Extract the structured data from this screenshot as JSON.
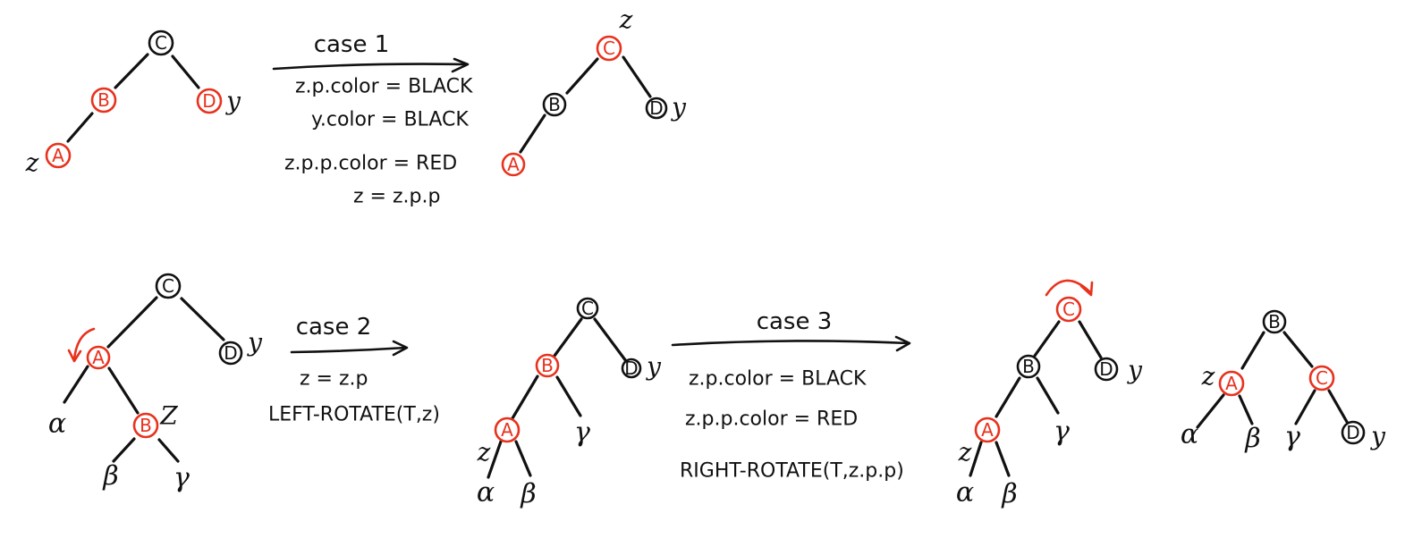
{
  "colors": {
    "red": "#e8321e",
    "black": "#111111"
  },
  "nodes": {
    "c": "C",
    "b": "B",
    "d": "D",
    "a": "A"
  },
  "tags": {
    "z": "z",
    "y": "y",
    "Z": "Z"
  },
  "greek": {
    "alpha": "α",
    "beta": "β",
    "gamma": "γ"
  },
  "case1": {
    "label": "case 1",
    "conditions": [
      "z.p.color = BLACK",
      "y.color = BLACK",
      "z.p.p.color = RED",
      "z = z.p.p"
    ]
  },
  "case2": {
    "label": "case 2",
    "conditions": [
      "z = z.p",
      "LEFT-ROTATE(T,z)"
    ]
  },
  "case3": {
    "label": "case 3",
    "conditions": [
      "z.p.color = BLACK",
      "z.p.p.color = RED",
      "RIGHT-ROTATE(T,z.p.p)"
    ]
  }
}
